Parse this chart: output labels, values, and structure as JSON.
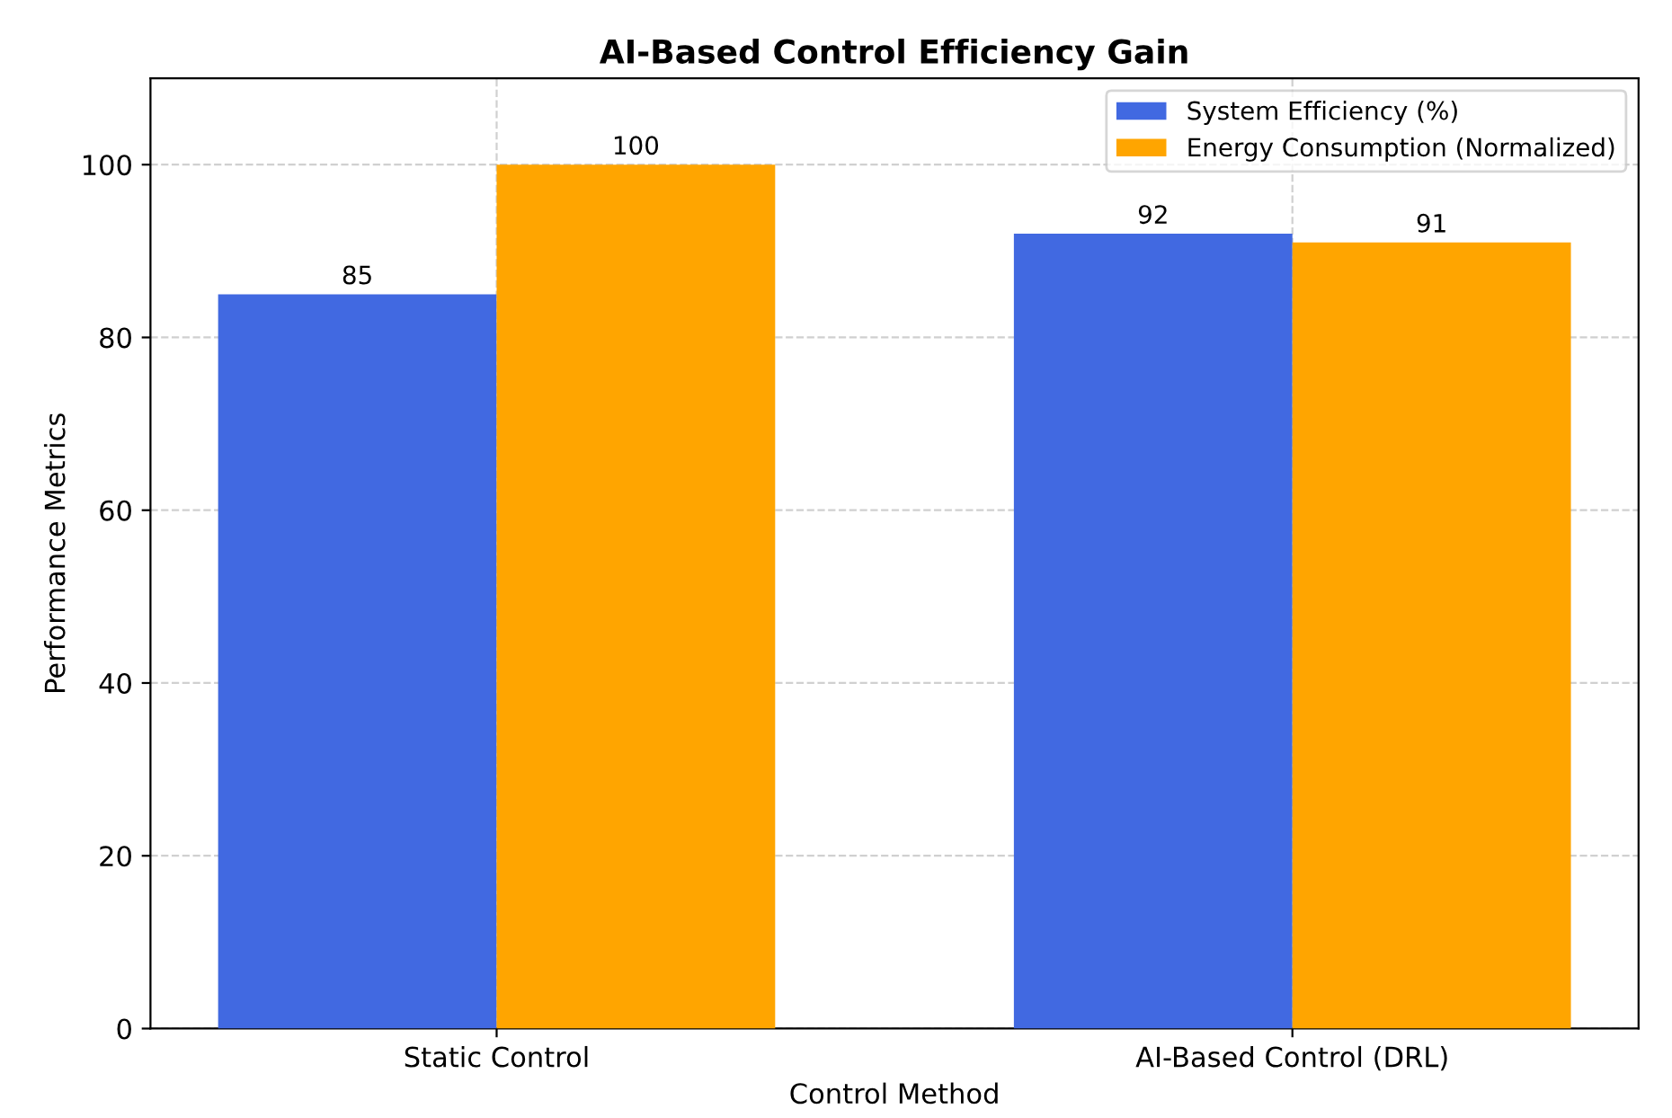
{
  "chart_data": {
    "type": "bar",
    "title": "AI-Based Control Efficiency Gain",
    "xlabel": "Control Method",
    "ylabel": "Performance Metrics",
    "categories": [
      "Static Control",
      "AI-Based Control (DRL)"
    ],
    "series": [
      {
        "name": "System Efficiency (%)",
        "color": "#4169e1",
        "values": [
          85,
          92
        ]
      },
      {
        "name": "Energy Consumption (Normalized)",
        "color": "#ffa500",
        "values": [
          100,
          91
        ]
      }
    ],
    "ylim": [
      0,
      110
    ],
    "yticks": [
      0,
      20,
      40,
      60,
      80,
      100
    ],
    "grid": true,
    "legend": "top right",
    "data_labels": true
  }
}
